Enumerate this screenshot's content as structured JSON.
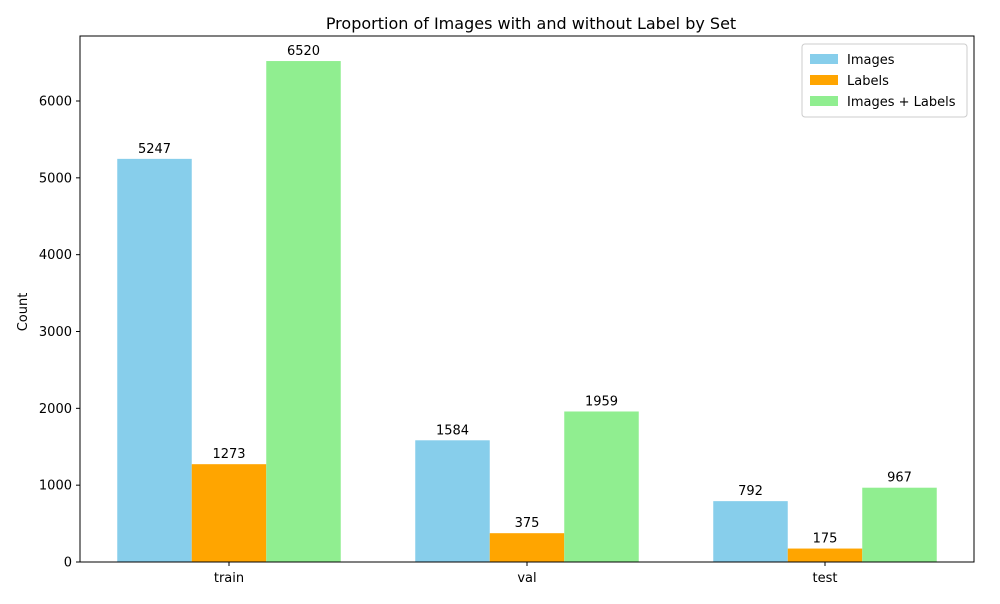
{
  "chart_data": {
    "type": "bar",
    "title": "Proportion of Images with and without Label by Set",
    "xlabel": "",
    "ylabel": "Count",
    "categories": [
      "train",
      "val",
      "test"
    ],
    "series": [
      {
        "name": "Images",
        "color": "#87ceeb",
        "values": [
          5247,
          1584,
          792
        ]
      },
      {
        "name": "Labels",
        "color": "#ffa500",
        "values": [
          1273,
          375,
          175
        ]
      },
      {
        "name": "Images + Labels",
        "color": "#90ee90",
        "values": [
          6520,
          1959,
          967
        ]
      }
    ],
    "ylim": [
      0,
      6846
    ],
    "yticks": [
      0,
      1000,
      2000,
      3000,
      4000,
      5000,
      6000
    ],
    "grid": false,
    "legend_position": "top-right"
  }
}
